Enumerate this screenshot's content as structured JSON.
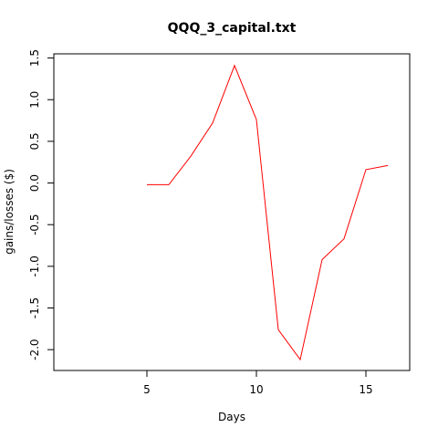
{
  "chart_data": {
    "type": "line",
    "title": "QQQ_3_capital.txt",
    "xlabel": "Days",
    "ylabel": "gains/losses ($)",
    "xlim": [
      0.75,
      17
    ],
    "ylim": [
      -2.25,
      1.55
    ],
    "x_ticks": [
      5,
      10,
      15
    ],
    "y_ticks": [
      -2.0,
      -1.5,
      -1.0,
      -0.5,
      0.0,
      0.5,
      1.0,
      1.5
    ],
    "y_tick_labels": [
      "-2.0",
      "-1.5",
      "-1.0",
      "-0.5",
      "0.0",
      "0.5",
      "1.0",
      "1.5"
    ],
    "grid": false,
    "series": [
      {
        "color": "#ff0000",
        "x": [
          5,
          6,
          7,
          8,
          9,
          10,
          11,
          12,
          13,
          14,
          15,
          16
        ],
        "y": [
          -0.02,
          -0.02,
          0.32,
          0.72,
          1.41,
          0.76,
          -1.76,
          -2.12,
          -0.92,
          -0.67,
          0.16,
          0.21
        ]
      }
    ]
  }
}
